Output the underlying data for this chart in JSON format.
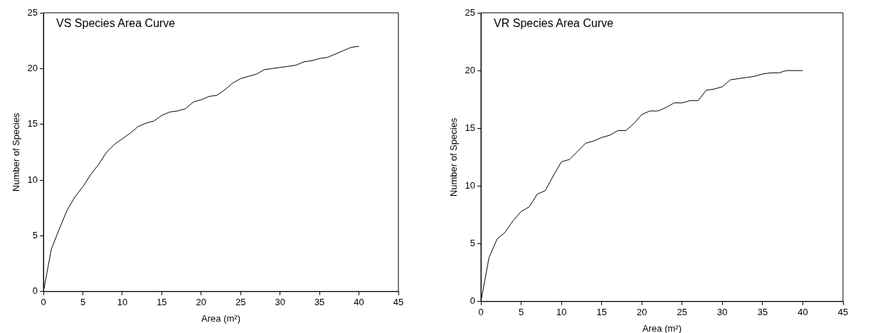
{
  "chart_data": [
    {
      "type": "line",
      "title": "VS Species Area Curve",
      "xlabel": "Area (m²)",
      "ylabel": "Number of Species",
      "x": [
        0,
        1,
        2,
        3,
        4,
        5,
        6,
        7,
        8,
        9,
        10,
        11,
        12,
        13,
        14,
        15,
        16,
        17,
        18,
        19,
        20,
        21,
        22,
        23,
        24,
        25,
        26,
        27,
        28,
        29,
        30,
        31,
        32,
        33,
        34,
        35,
        36,
        37,
        38,
        39,
        40
      ],
      "series": [
        {
          "color": "#000000",
          "values": [
            0,
            3.8,
            5.6,
            7.3,
            8.5,
            9.4,
            10.5,
            11.4,
            12.5,
            13.2,
            13.7,
            14.2,
            14.8,
            15.1,
            15.3,
            15.8,
            16.1,
            16.2,
            16.4,
            17.0,
            17.2,
            17.5,
            17.6,
            18.1,
            18.7,
            19.1,
            19.3,
            19.5,
            19.9,
            20.0,
            20.1,
            20.2,
            20.3,
            20.6,
            20.7,
            20.9,
            21.0,
            21.3,
            21.6,
            21.9,
            22.0
          ]
        }
      ],
      "xlim": [
        0,
        45
      ],
      "xticks": [
        0,
        5,
        10,
        15,
        20,
        25,
        30,
        35,
        40,
        45
      ],
      "ylim": [
        0,
        25
      ],
      "yticks": [
        0,
        5,
        10,
        15,
        20,
        25
      ],
      "grid": false,
      "legend": false,
      "marker": "none",
      "line_style": "solid"
    },
    {
      "type": "line",
      "title": "VR Species Area Curve",
      "xlabel": "Area (m²)",
      "ylabel": "Number of Species",
      "x": [
        0,
        1,
        2,
        3,
        4,
        5,
        6,
        7,
        8,
        9,
        10,
        11,
        12,
        13,
        14,
        15,
        16,
        17,
        18,
        19,
        20,
        21,
        22,
        23,
        24,
        25,
        26,
        27,
        28,
        29,
        30,
        31,
        32,
        33,
        34,
        35,
        36,
        37,
        38,
        39,
        40
      ],
      "series": [
        {
          "color": "#000000",
          "values": [
            0,
            3.8,
            5.4,
            6.0,
            7.0,
            7.8,
            8.2,
            9.3,
            9.6,
            10.9,
            12.1,
            12.3,
            13.0,
            13.7,
            13.9,
            14.2,
            14.4,
            14.8,
            14.8,
            15.4,
            16.2,
            16.5,
            16.5,
            16.8,
            17.2,
            17.2,
            17.4,
            17.4,
            18.3,
            18.4,
            18.6,
            19.2,
            19.3,
            19.4,
            19.5,
            19.7,
            19.8,
            19.8,
            20.0,
            20.0,
            20.0
          ]
        }
      ],
      "xlim": [
        0,
        45
      ],
      "xticks": [
        0,
        5,
        10,
        15,
        20,
        25,
        30,
        35,
        40,
        45
      ],
      "ylim": [
        0,
        25
      ],
      "yticks": [
        0,
        5,
        10,
        15,
        20,
        25
      ],
      "grid": false,
      "legend": false,
      "marker": "none",
      "line_style": "solid"
    }
  ]
}
